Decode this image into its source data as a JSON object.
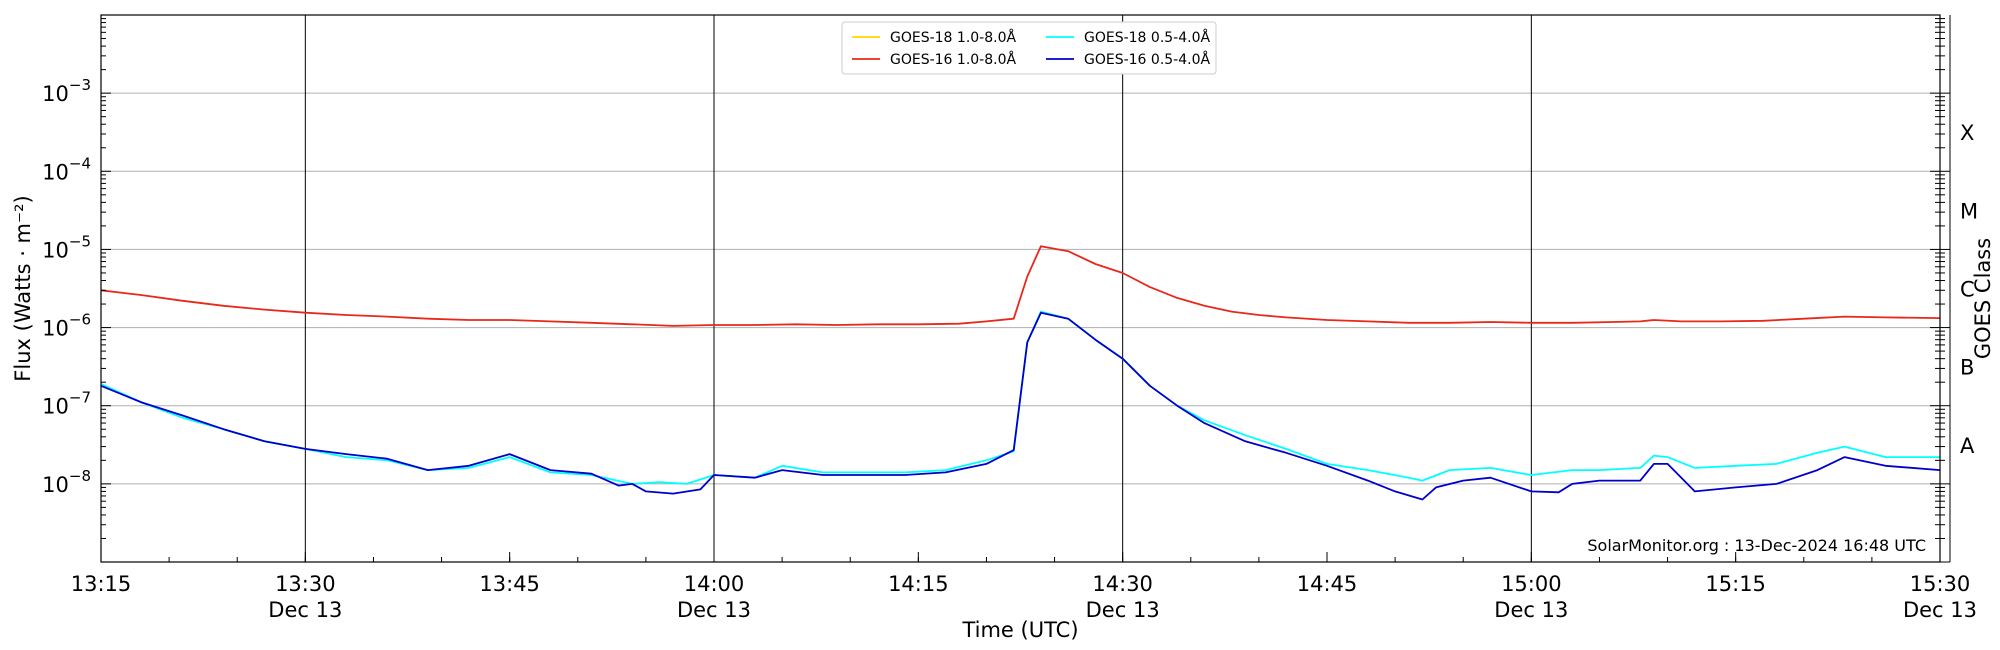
{
  "chart_data": {
    "type": "line",
    "xlabel": "Time (UTC)",
    "ylabel": "Flux (Watts · m⁻²)",
    "y2label": "GOES Class",
    "yscale": "log",
    "ylim": [
      1e-09,
      0.01
    ],
    "xlim": [
      "13:15",
      "15:30"
    ],
    "grid": "horizontal at decades",
    "legend_position": "top-center",
    "credit": "SolarMonitor.org : 13-Dec-2024 16:48 UTC",
    "x_ticks": [
      {
        "time": "13:15",
        "label": "13:15",
        "sub": ""
      },
      {
        "time": "13:30",
        "label": "13:30",
        "sub": "Dec 13"
      },
      {
        "time": "13:45",
        "label": "13:45",
        "sub": ""
      },
      {
        "time": "14:00",
        "label": "14:00",
        "sub": "Dec 13"
      },
      {
        "time": "14:15",
        "label": "14:15",
        "sub": ""
      },
      {
        "time": "14:30",
        "label": "14:30",
        "sub": "Dec 13"
      },
      {
        "time": "14:45",
        "label": "14:45",
        "sub": ""
      },
      {
        "time": "15:00",
        "label": "15:00",
        "sub": "Dec 13"
      },
      {
        "time": "15:15",
        "label": "15:15",
        "sub": ""
      },
      {
        "time": "15:30",
        "label": "15:30",
        "sub": "Dec 13"
      }
    ],
    "day_lines": [
      "13:30",
      "14:00",
      "14:30",
      "15:00"
    ],
    "y_ticks": [
      {
        "value": 0.001,
        "base": "10",
        "exp": "−3"
      },
      {
        "value": 0.0001,
        "base": "10",
        "exp": "−4"
      },
      {
        "value": 1e-05,
        "base": "10",
        "exp": "−5"
      },
      {
        "value": 1e-06,
        "base": "10",
        "exp": "−6"
      },
      {
        "value": 1e-07,
        "base": "10",
        "exp": "−7"
      },
      {
        "value": 1e-08,
        "base": "10",
        "exp": "−8"
      }
    ],
    "goes_classes": [
      {
        "label": "X",
        "value": 0.000316
      },
      {
        "label": "M",
        "value": 3.16e-05
      },
      {
        "label": "C",
        "value": 3.16e-06
      },
      {
        "label": "B",
        "value": 3.16e-07
      },
      {
        "label": "A",
        "value": 3.16e-08
      }
    ],
    "series": [
      {
        "name": "GOES-18 1.0-8.0Å",
        "color": "#FFD700",
        "x": [],
        "y": []
      },
      {
        "name": "GOES-16 1.0-8.0Å",
        "color": "#E8281A",
        "x": [
          "13:15",
          "13:18",
          "13:21",
          "13:24",
          "13:27",
          "13:30",
          "13:33",
          "13:36",
          "13:39",
          "13:42",
          "13:45",
          "13:48",
          "13:51",
          "13:54",
          "13:57",
          "14:00",
          "14:03",
          "14:06",
          "14:09",
          "14:12",
          "14:15",
          "14:18",
          "14:20",
          "14:22",
          "14:23",
          "14:24",
          "14:26",
          "14:28",
          "14:30",
          "14:32",
          "14:34",
          "14:36",
          "14:38",
          "14:40",
          "14:42",
          "14:45",
          "14:48",
          "14:51",
          "14:54",
          "14:57",
          "15:00",
          "15:03",
          "15:06",
          "15:08",
          "15:09",
          "15:11",
          "15:14",
          "15:17",
          "15:20",
          "15:23",
          "15:26",
          "15:30"
        ],
        "y": [
          3e-06,
          2.6e-06,
          2.2e-06,
          1.9e-06,
          1.7e-06,
          1.55e-06,
          1.45e-06,
          1.38e-06,
          1.3e-06,
          1.25e-06,
          1.25e-06,
          1.2e-06,
          1.15e-06,
          1.1e-06,
          1.05e-06,
          1.08e-06,
          1.08e-06,
          1.1e-06,
          1.08e-06,
          1.1e-06,
          1.1e-06,
          1.12e-06,
          1.2e-06,
          1.3e-06,
          4.5e-06,
          1.1e-05,
          9.5e-06,
          6.5e-06,
          5e-06,
          3.3e-06,
          2.4e-06,
          1.9e-06,
          1.6e-06,
          1.45e-06,
          1.35e-06,
          1.25e-06,
          1.2e-06,
          1.15e-06,
          1.15e-06,
          1.18e-06,
          1.15e-06,
          1.15e-06,
          1.18e-06,
          1.2e-06,
          1.25e-06,
          1.2e-06,
          1.2e-06,
          1.22e-06,
          1.3e-06,
          1.38e-06,
          1.35e-06,
          1.32e-06
        ]
      },
      {
        "name": "GOES-18 0.5-4.0Å",
        "color": "#00FFFF",
        "x": [
          "13:15",
          "13:18",
          "13:21",
          "13:24",
          "13:27",
          "13:30",
          "13:33",
          "13:36",
          "13:39",
          "13:42",
          "13:45",
          "13:48",
          "13:51",
          "13:54",
          "13:56",
          "13:58",
          "14:00",
          "14:03",
          "14:05",
          "14:08",
          "14:11",
          "14:14",
          "14:17",
          "14:20",
          "14:22",
          "14:23",
          "14:24",
          "14:26",
          "14:28",
          "14:30",
          "14:32",
          "14:34",
          "14:36",
          "14:39",
          "14:42",
          "14:45",
          "14:48",
          "14:51",
          "14:52",
          "14:54",
          "14:57",
          "15:00",
          "15:03",
          "15:05",
          "15:08",
          "15:09",
          "15:10",
          "15:12",
          "15:15",
          "15:18",
          "15:21",
          "15:23",
          "15:26",
          "15:30"
        ],
        "y": [
          1.9e-07,
          1.1e-07,
          7e-08,
          5e-08,
          3.5e-08,
          2.8e-08,
          2.2e-08,
          2e-08,
          1.5e-08,
          1.6e-08,
          2.2e-08,
          1.4e-08,
          1.3e-08,
          1e-08,
          1.05e-08,
          1e-08,
          1.3e-08,
          1.2e-08,
          1.7e-08,
          1.4e-08,
          1.4e-08,
          1.4e-08,
          1.5e-08,
          2e-08,
          2.6e-08,
          6.5e-07,
          1.6e-06,
          1.3e-06,
          7e-07,
          4e-07,
          1.8e-07,
          1e-07,
          6.5e-08,
          4.2e-08,
          2.8e-08,
          1.8e-08,
          1.5e-08,
          1.2e-08,
          1.1e-08,
          1.5e-08,
          1.6e-08,
          1.3e-08,
          1.5e-08,
          1.5e-08,
          1.6e-08,
          2.3e-08,
          2.2e-08,
          1.6e-08,
          1.7e-08,
          1.8e-08,
          2.5e-08,
          3e-08,
          2.2e-08,
          2.2e-08
        ]
      },
      {
        "name": "GOES-16 0.5-4.0Å",
        "color": "#0000CC",
        "x": [
          "13:15",
          "13:18",
          "13:21",
          "13:24",
          "13:27",
          "13:30",
          "13:33",
          "13:36",
          "13:39",
          "13:42",
          "13:45",
          "13:48",
          "13:51",
          "13:53",
          "13:54",
          "13:55",
          "13:57",
          "13:59",
          "14:00",
          "14:03",
          "14:05",
          "14:08",
          "14:11",
          "14:14",
          "14:17",
          "14:20",
          "14:22",
          "14:23",
          "14:24",
          "14:26",
          "14:28",
          "14:30",
          "14:32",
          "14:34",
          "14:36",
          "14:39",
          "14:42",
          "14:45",
          "14:48",
          "14:50",
          "14:52",
          "14:53",
          "14:55",
          "14:57",
          "15:00",
          "15:02",
          "15:03",
          "15:05",
          "15:08",
          "15:09",
          "15:10",
          "15:12",
          "15:15",
          "15:18",
          "15:21",
          "15:23",
          "15:26",
          "15:30"
        ],
        "y": [
          1.8e-07,
          1.1e-07,
          7.5e-08,
          5e-08,
          3.5e-08,
          2.8e-08,
          2.4e-08,
          2.1e-08,
          1.5e-08,
          1.7e-08,
          2.4e-08,
          1.5e-08,
          1.35e-08,
          9.5e-09,
          1e-08,
          8e-09,
          7.5e-09,
          8.5e-09,
          1.3e-08,
          1.2e-08,
          1.5e-08,
          1.3e-08,
          1.3e-08,
          1.3e-08,
          1.4e-08,
          1.8e-08,
          2.7e-08,
          6.5e-07,
          1.55e-06,
          1.3e-06,
          7e-07,
          4e-07,
          1.8e-07,
          1e-07,
          6e-08,
          3.5e-08,
          2.5e-08,
          1.7e-08,
          1.1e-08,
          8e-09,
          6.3e-09,
          9e-09,
          1.1e-08,
          1.2e-08,
          8e-09,
          7.8e-09,
          1e-08,
          1.1e-08,
          1.1e-08,
          1.8e-08,
          1.8e-08,
          8e-09,
          9e-09,
          1e-08,
          1.5e-08,
          2.2e-08,
          1.7e-08,
          1.5e-08
        ]
      }
    ]
  }
}
